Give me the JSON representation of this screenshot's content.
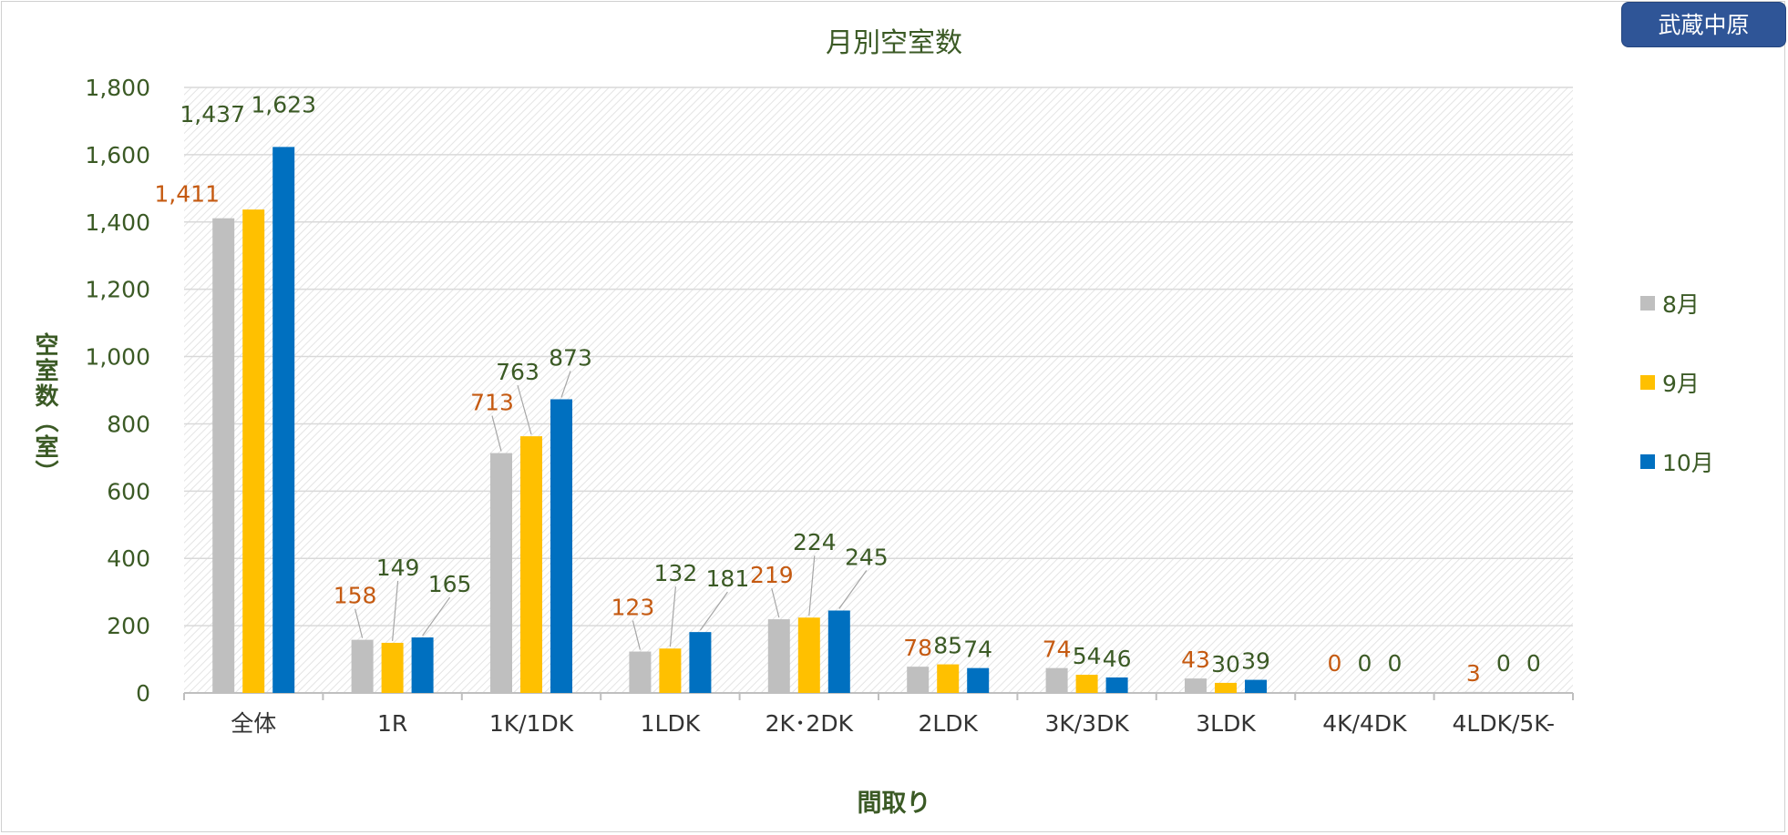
{
  "badge": "武蔵中原",
  "chart_data": {
    "type": "bar",
    "title": "月別空室数",
    "xlabel": "間取り",
    "ylabel": "空室数（室）",
    "ylim": [
      0,
      1800
    ],
    "yticks": [
      "0",
      "200",
      "400",
      "600",
      "800",
      "1,000",
      "1,200",
      "1,400",
      "1,600",
      "1,800"
    ],
    "grid": true,
    "legend_position": "right",
    "categories": [
      "全体",
      "1R",
      "1K/1DK",
      "1LDK",
      "2K･2DK",
      "2LDK",
      "3K/3DK",
      "3LDK",
      "4K/4DK",
      "4LDK/5K-"
    ],
    "series": [
      {
        "name": "8月",
        "color": "#bfbfbf",
        "values": [
          1411,
          158,
          713,
          123,
          219,
          78,
          74,
          43,
          0,
          3
        ],
        "labels": [
          "1,411",
          "158",
          "713",
          "123",
          "219",
          "78",
          "74",
          "43",
          "0",
          "3"
        ]
      },
      {
        "name": "9月",
        "color": "#ffc000",
        "values": [
          1437,
          149,
          763,
          132,
          224,
          85,
          54,
          30,
          0,
          0
        ],
        "labels": [
          "1,437",
          "149",
          "763",
          "132",
          "224",
          "85",
          "54",
          "30",
          "0",
          "0"
        ]
      },
      {
        "name": "10月",
        "color": "#0070c0",
        "values": [
          1623,
          165,
          873,
          181,
          245,
          74,
          46,
          39,
          0,
          0
        ],
        "labels": [
          "1,623",
          "165",
          "873",
          "181",
          "245",
          "74",
          "46",
          "39",
          "0",
          "0"
        ]
      }
    ],
    "label_colors": {
      "8月": "#c55a11",
      "9月": "#3b5a25",
      "10月": "#3b5a25"
    }
  }
}
